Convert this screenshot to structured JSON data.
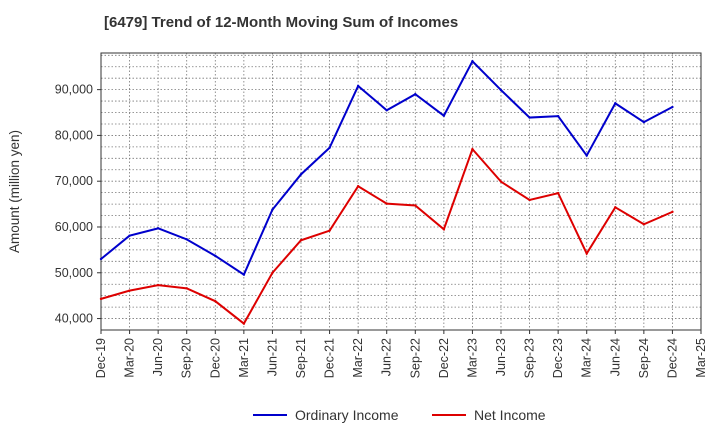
{
  "chart_data": {
    "type": "line",
    "title": "[6479]  Trend of 12-Month Moving Sum of Incomes",
    "xlabel": "",
    "ylabel": "Amount (million yen)",
    "categories": [
      "Dec-19",
      "Mar-20",
      "Jun-20",
      "Sep-20",
      "Dec-20",
      "Mar-21",
      "Jun-21",
      "Sep-21",
      "Dec-21",
      "Mar-22",
      "Jun-22",
      "Sep-22",
      "Dec-22",
      "Mar-23",
      "Jun-23",
      "Sep-23",
      "Dec-23",
      "Mar-24",
      "Jun-24",
      "Sep-24",
      "Dec-24",
      "Mar-25"
    ],
    "yticks": [
      40000,
      50000,
      60000,
      70000,
      80000,
      90000
    ],
    "ytick_labels": [
      "40,000",
      "50,000",
      "60,000",
      "70,000",
      "80,000",
      "90,000"
    ],
    "ylim": [
      37500,
      98000
    ],
    "grid": true,
    "legend_position": "bottom-center",
    "series": [
      {
        "name": "Ordinary Income",
        "color": "#0000cc",
        "values": [
          53000,
          58100,
          59700,
          57300,
          53700,
          49600,
          63800,
          71500,
          77300,
          90800,
          85500,
          89000,
          84300,
          96200,
          89900,
          83900,
          84200,
          75600,
          87000,
          82900,
          86200,
          null
        ]
      },
      {
        "name": "Net Income",
        "color": "#dd0000",
        "values": [
          44300,
          46100,
          47300,
          46600,
          43800,
          38900,
          50000,
          57100,
          59200,
          68900,
          65100,
          64700,
          59500,
          77000,
          69900,
          65900,
          67400,
          54200,
          64300,
          60600,
          63300,
          null
        ]
      }
    ]
  }
}
